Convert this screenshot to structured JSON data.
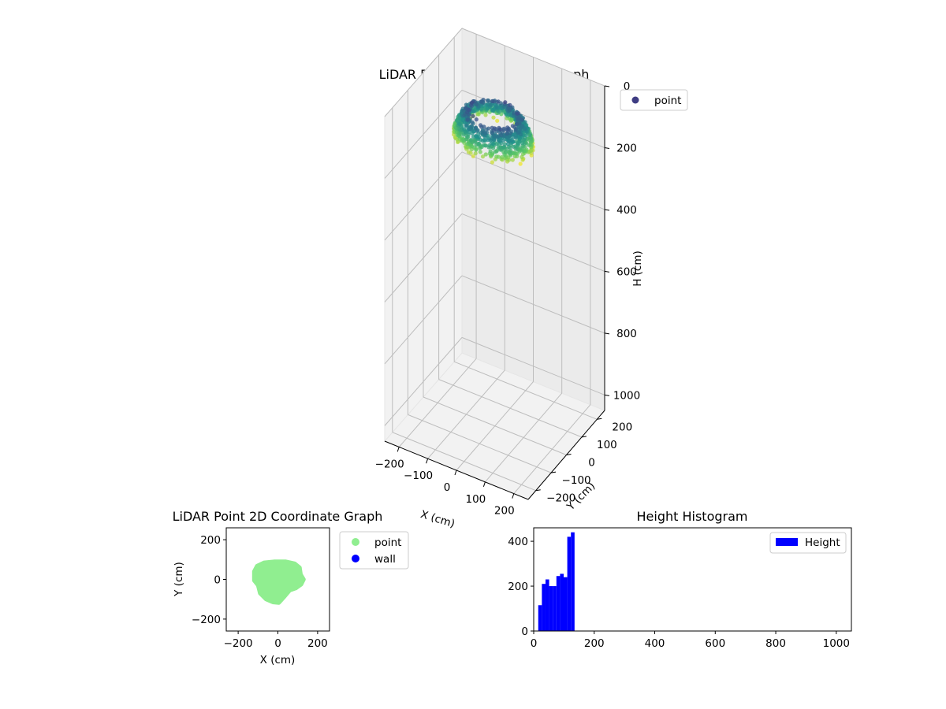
{
  "chart_data": [
    {
      "type": "scatter",
      "projection": "3d",
      "title": "LiDAR Point 3D Coordinate Graph",
      "xlabel": "X (cm)",
      "ylabel": "Y (cm)",
      "zlabel": "H (cm)",
      "xlim": [
        -250,
        250
      ],
      "ylim": [
        -250,
        250
      ],
      "zlim": [
        0,
        1050
      ],
      "z_inverted": true,
      "x_ticks": [
        -200,
        -100,
        0,
        100,
        200
      ],
      "y_ticks": [
        -200,
        -100,
        0,
        100,
        200
      ],
      "z_ticks": [
        0,
        200,
        400,
        600,
        800,
        1000
      ],
      "grid": true,
      "legend": {
        "placement": "upper-right outside",
        "entries": [
          {
            "name": "point",
            "color": "#3f3d83"
          }
        ]
      },
      "colormap": "viridis",
      "series": [
        {
          "name": "point",
          "shape": "dome",
          "height_range": [
            0,
            130
          ],
          "extent_x": [
            -130,
            130
          ],
          "extent_y": [
            -110,
            90
          ]
        }
      ]
    },
    {
      "type": "scatter",
      "title": "LiDAR Point 2D Coordinate Graph",
      "xlabel": "X (cm)",
      "ylabel": "Y (cm)",
      "xlim": [
        -260,
        260
      ],
      "ylim": [
        -260,
        260
      ],
      "x_ticks": [
        -200,
        0,
        200
      ],
      "y_ticks": [
        -200,
        0,
        200
      ],
      "legend": {
        "placement": "outside right",
        "entries": [
          {
            "name": "point",
            "color": "#90ee90"
          },
          {
            "name": "wall",
            "color": "#0000ff"
          }
        ]
      },
      "series": [
        {
          "name": "point",
          "color": "#90ee90",
          "outline": [
            [
              -120,
              40
            ],
            [
              -105,
              68
            ],
            [
              -70,
              85
            ],
            [
              -20,
              90
            ],
            [
              40,
              90
            ],
            [
              85,
              80
            ],
            [
              110,
              60
            ],
            [
              115,
              25
            ],
            [
              130,
              0
            ],
            [
              118,
              -25
            ],
            [
              90,
              -45
            ],
            [
              60,
              -55
            ],
            [
              30,
              -90
            ],
            [
              5,
              -118
            ],
            [
              -25,
              -115
            ],
            [
              -60,
              -100
            ],
            [
              -90,
              -70
            ],
            [
              -100,
              -30
            ],
            [
              -120,
              -5
            ]
          ]
        },
        {
          "name": "wall",
          "color": "#0000ff",
          "points": []
        }
      ]
    },
    {
      "type": "bar",
      "title": "Height Histogram",
      "xlim": [
        0,
        1050
      ],
      "ylim": [
        0,
        460
      ],
      "x_ticks": [
        0,
        200,
        400,
        600,
        800,
        1000
      ],
      "y_ticks": [
        0,
        200,
        400
      ],
      "legend": {
        "placement": "upper-right",
        "entries": [
          {
            "name": "Height",
            "color": "#0000ff"
          }
        ]
      },
      "series": [
        {
          "name": "Height",
          "color": "#0000ff",
          "bin_edges": [
            15,
            27,
            39,
            51,
            63,
            75,
            87,
            99,
            111,
            123,
            135
          ],
          "values": [
            115,
            210,
            230,
            200,
            200,
            245,
            255,
            240,
            420,
            440
          ]
        }
      ]
    }
  ]
}
